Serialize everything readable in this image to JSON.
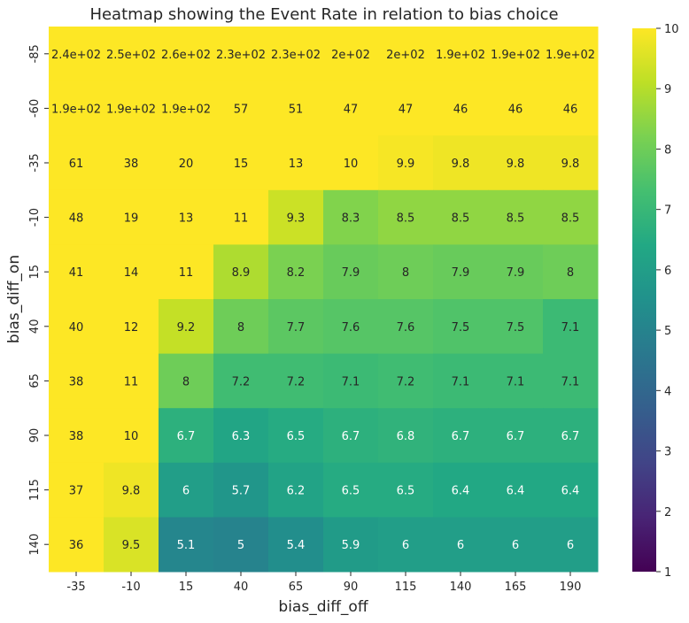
{
  "chart_data": {
    "type": "heatmap",
    "title": "Heatmap showing the Event Rate in relation to bias choice",
    "xlabel": "bias_diff_off",
    "ylabel": "bias_diff_on",
    "x_categories": [
      "-35",
      "-10",
      "15",
      "40",
      "65",
      "90",
      "115",
      "140",
      "165",
      "190"
    ],
    "y_categories": [
      "-85",
      "-60",
      "-35",
      "-10",
      "15",
      "40",
      "65",
      "90",
      "115",
      "140"
    ],
    "values": [
      [
        240,
        250,
        260,
        230,
        230,
        200,
        200,
        190,
        190,
        190
      ],
      [
        190,
        190,
        190,
        57,
        51,
        47,
        47,
        46,
        46,
        46
      ],
      [
        61,
        38,
        20,
        15,
        13,
        10,
        9.9,
        9.8,
        9.8,
        9.8
      ],
      [
        48,
        19,
        13,
        11,
        9.3,
        8.3,
        8.5,
        8.5,
        8.5,
        8.5
      ],
      [
        41,
        14,
        11,
        8.9,
        8.2,
        7.9,
        8,
        7.9,
        7.9,
        8
      ],
      [
        40,
        12,
        9.2,
        8,
        7.7,
        7.6,
        7.6,
        7.5,
        7.5,
        7.1
      ],
      [
        38,
        11,
        8,
        7.2,
        7.2,
        7.1,
        7.2,
        7.1,
        7.1,
        7.1
      ],
      [
        38,
        10,
        6.7,
        6.3,
        6.5,
        6.7,
        6.8,
        6.7,
        6.7,
        6.7
      ],
      [
        37,
        9.8,
        6,
        5.7,
        6.2,
        6.5,
        6.5,
        6.4,
        6.4,
        6.4
      ],
      [
        36,
        9.5,
        5.1,
        5,
        5.4,
        5.9,
        6,
        6,
        6,
        6
      ]
    ],
    "annotations": [
      [
        "2.4e+02",
        "2.5e+02",
        "2.6e+02",
        "2.3e+02",
        "2.3e+02",
        "2e+02",
        "2e+02",
        "1.9e+02",
        "1.9e+02",
        "1.9e+02"
      ],
      [
        "1.9e+02",
        "1.9e+02",
        "1.9e+02",
        "57",
        "51",
        "47",
        "47",
        "46",
        "46",
        "46"
      ],
      [
        "61",
        "38",
        "20",
        "15",
        "13",
        "10",
        "9.9",
        "9.8",
        "9.8",
        "9.8"
      ],
      [
        "48",
        "19",
        "13",
        "11",
        "9.3",
        "8.3",
        "8.5",
        "8.5",
        "8.5",
        "8.5"
      ],
      [
        "41",
        "14",
        "11",
        "8.9",
        "8.2",
        "7.9",
        "8",
        "7.9",
        "7.9",
        "8"
      ],
      [
        "40",
        "12",
        "9.2",
        "8",
        "7.7",
        "7.6",
        "7.6",
        "7.5",
        "7.5",
        "7.1"
      ],
      [
        "38",
        "11",
        "8",
        "7.2",
        "7.2",
        "7.1",
        "7.2",
        "7.1",
        "7.1",
        "7.1"
      ],
      [
        "38",
        "10",
        "6.7",
        "6.3",
        "6.5",
        "6.7",
        "6.8",
        "6.7",
        "6.7",
        "6.7"
      ],
      [
        "37",
        "9.8",
        "6",
        "5.7",
        "6.2",
        "6.5",
        "6.5",
        "6.4",
        "6.4",
        "6.4"
      ],
      [
        "36",
        "9.5",
        "5.1",
        "5",
        "5.4",
        "5.9",
        "6",
        "6",
        "6",
        "6"
      ]
    ],
    "color_range": [
      1,
      10
    ],
    "colormap": "viridis",
    "colorbar_ticks": [
      "1",
      "2",
      "3",
      "4",
      "5",
      "6",
      "7",
      "8",
      "9",
      "10"
    ],
    "colorbar_placement": "right",
    "grid": false
  }
}
